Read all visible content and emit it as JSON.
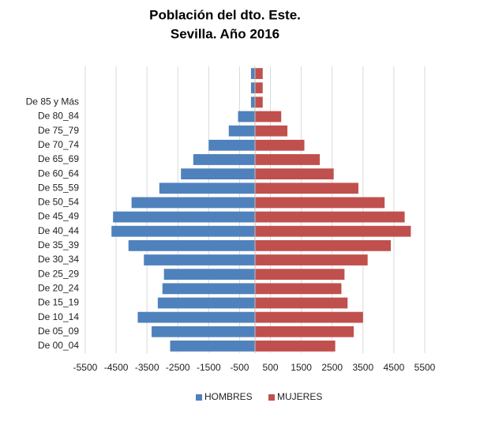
{
  "chart_data": {
    "type": "pyramid",
    "title": [
      "Población del dto. Este.",
      "Sevilla. Año 2016"
    ],
    "categories": [
      "De 00_04",
      "De 05_09",
      "De 10_14",
      "De 15_19",
      "De 20_24",
      "De 25_29",
      "De 30_34",
      "De 35_39",
      "De 40_44",
      "De 45_49",
      "De 50_54",
      "De 55_59",
      "De 60_64",
      "De 65_69",
      "De 70_74",
      "De 75_79",
      "De 80_84",
      "De 85 y Más",
      null,
      null
    ],
    "series": [
      {
        "name": "HOMBRES",
        "color": "#4f81bd",
        "values": [
          -2750,
          -3350,
          -3800,
          -3150,
          -3000,
          -2950,
          -3600,
          -4100,
          -4650,
          -4600,
          -4000,
          -3100,
          -2400,
          -2000,
          -1500,
          -850,
          -550,
          -130,
          -130,
          -130
        ]
      },
      {
        "name": "MUJERES",
        "color": "#c0504d",
        "values": [
          2600,
          3200,
          3500,
          3000,
          2800,
          2900,
          3650,
          4400,
          5050,
          4850,
          4200,
          3350,
          2550,
          2100,
          1600,
          1050,
          850,
          250,
          250,
          250
        ]
      }
    ],
    "xlim": [
      -5500,
      5500
    ],
    "xticks": [
      -5500,
      -4500,
      -3500,
      -2500,
      -1500,
      -500,
      500,
      1500,
      2500,
      3500,
      4500,
      5500
    ],
    "grid": true,
    "legend": "bottom"
  }
}
